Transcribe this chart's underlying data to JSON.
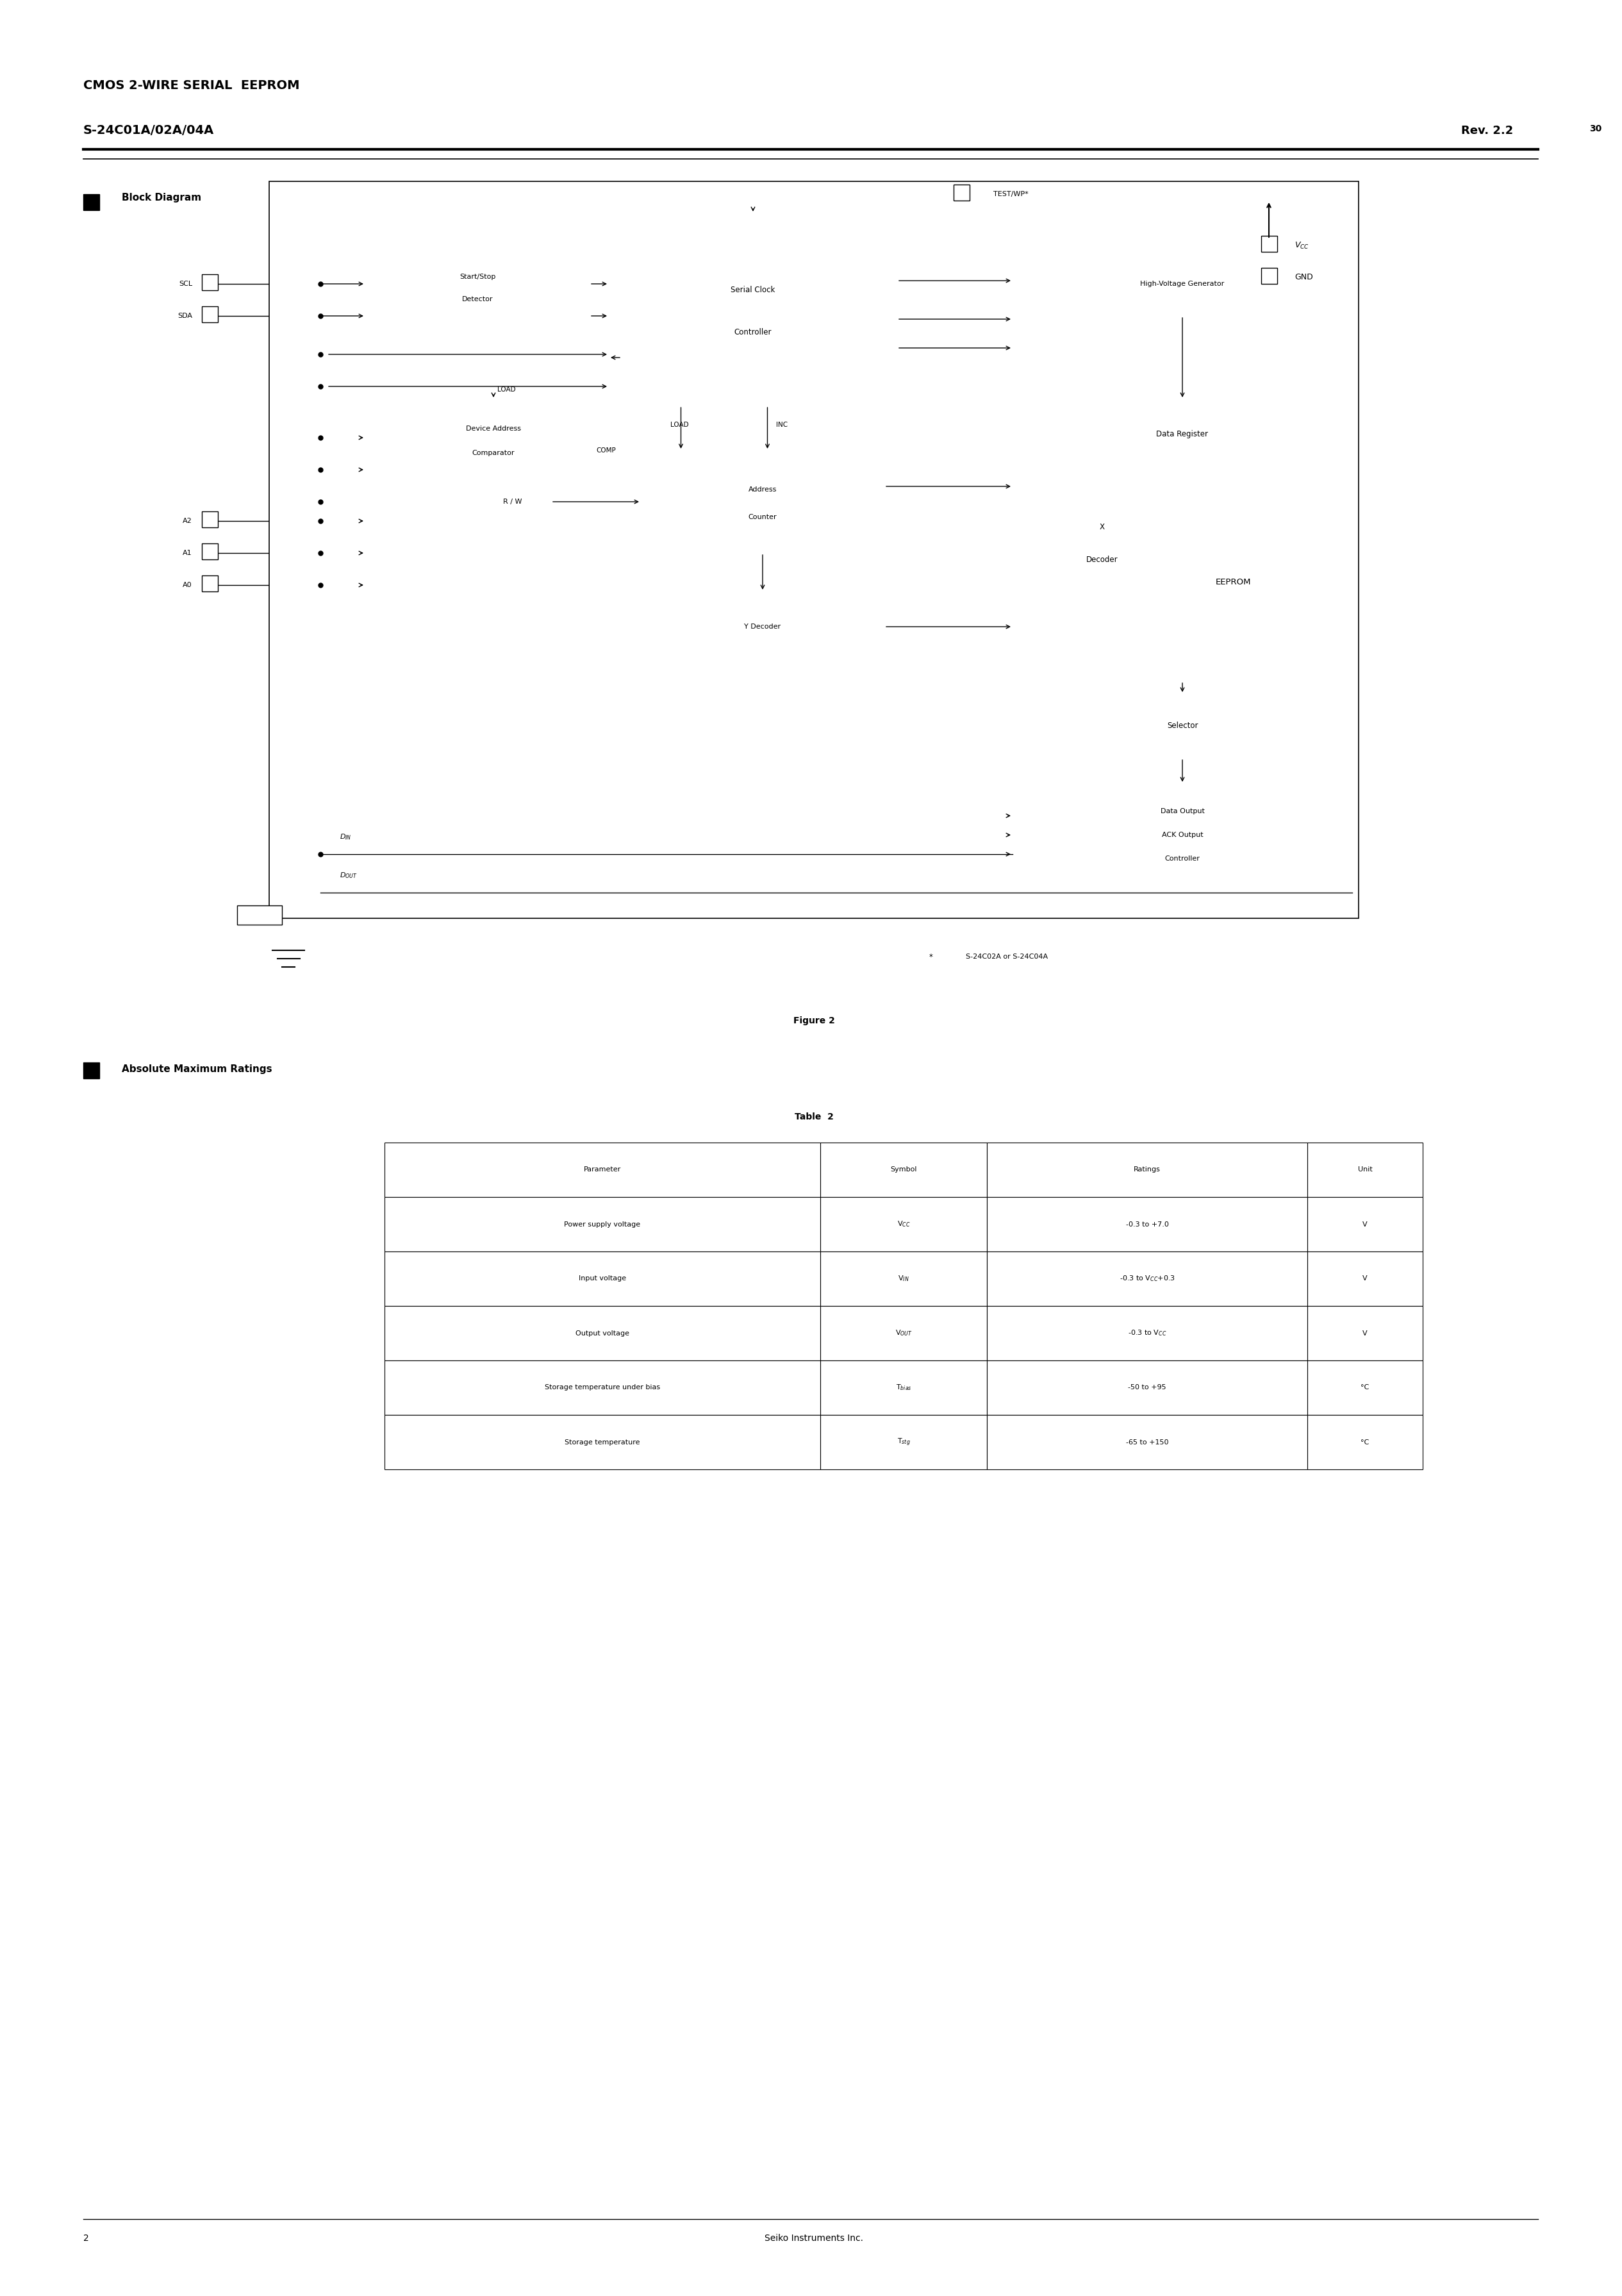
{
  "page_width": 25.31,
  "page_height": 35.83,
  "bg_color": "#ffffff",
  "header_line1": "CMOS 2-WIRE SERIAL  EEPROM",
  "header_line2": "S-24C01A/02A/04A",
  "header_right": "Rev. 2.2",
  "header_right_super": "30",
  "section1_title": "Block Diagram",
  "figure_label": "Figure 2",
  "section2_title": "Absolute Maximum Ratings",
  "table_title": "Table  2",
  "table_headers": [
    "Parameter",
    "Symbol",
    "Ratings",
    "Unit"
  ],
  "table_rows": [
    [
      "Power supply voltage",
      "V$_{CC}$",
      "-0.3 to +7.0",
      "V"
    ],
    [
      "Input voltage",
      "V$_{IN}$",
      "-0.3 to V$_{CC}$+0.3",
      "V"
    ],
    [
      "Output voltage",
      "V$_{OUT}$",
      "-0.3 to V$_{CC}$",
      "V"
    ],
    [
      "Storage temperature under bias",
      "T$_{bias}$",
      "-50 to +95",
      "°C"
    ],
    [
      "Storage temperature",
      "T$_{stg}$",
      "-65 to +150",
      "°C"
    ]
  ],
  "footnote_star": "*",
  "footnote_text": "  S-24C02A or S-24C04A",
  "page_num": "2",
  "footer_center": "Seiko Instruments Inc."
}
